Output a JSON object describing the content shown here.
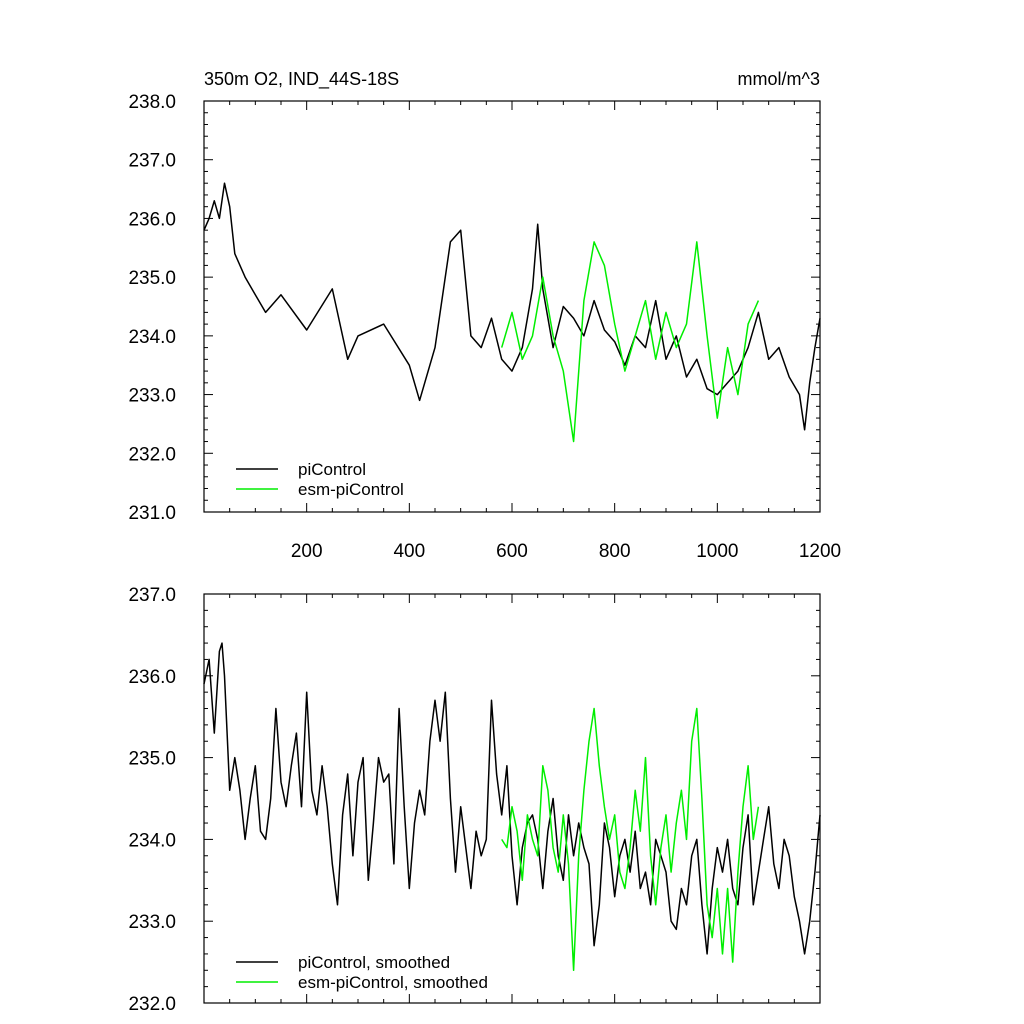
{
  "chart_data": [
    {
      "type": "line",
      "title_left": "350m O2, IND_44S-18S",
      "title_right": "mmol/m^3",
      "xlabel": "",
      "ylabel": "",
      "xlim": [
        0,
        1200
      ],
      "ylim": [
        231.0,
        238.0
      ],
      "xticks": [
        "200",
        "400",
        "600",
        "800",
        "1000",
        "1200"
      ],
      "xtick_values": [
        200,
        400,
        600,
        800,
        1000,
        1200
      ],
      "yticks": [
        "238.0",
        "237.0",
        "236.0",
        "235.0",
        "234.0",
        "233.0",
        "232.0",
        "231.0"
      ],
      "ytick_values": [
        238,
        237,
        236,
        235,
        234,
        233,
        232,
        231
      ],
      "grid": false,
      "legend_position": "bottom-left",
      "series": [
        {
          "name": "piControl",
          "color": "#000000",
          "x": [
            0,
            10,
            20,
            30,
            40,
            50,
            60,
            80,
            100,
            120,
            150,
            200,
            250,
            280,
            300,
            350,
            400,
            420,
            450,
            480,
            500,
            520,
            540,
            560,
            580,
            600,
            620,
            640,
            650,
            660,
            680,
            700,
            720,
            740,
            760,
            780,
            800,
            820,
            840,
            860,
            880,
            900,
            920,
            940,
            960,
            980,
            1000,
            1020,
            1040,
            1060,
            1080,
            1100,
            1120,
            1140,
            1160,
            1170,
            1180,
            1190,
            1200
          ],
          "y": [
            235.8,
            236.0,
            236.3,
            236.0,
            236.6,
            236.2,
            235.4,
            235.0,
            234.7,
            234.4,
            234.7,
            234.1,
            234.8,
            233.6,
            234.0,
            234.2,
            233.5,
            232.9,
            233.8,
            235.6,
            235.8,
            234.0,
            233.8,
            234.3,
            233.6,
            233.4,
            233.8,
            234.8,
            235.9,
            234.8,
            233.8,
            234.5,
            234.3,
            234.0,
            234.6,
            234.1,
            233.9,
            233.5,
            234.0,
            233.8,
            234.6,
            233.6,
            234.0,
            233.3,
            233.6,
            233.1,
            233.0,
            233.2,
            233.4,
            233.8,
            234.4,
            233.6,
            233.8,
            233.3,
            233.0,
            232.4,
            233.2,
            233.8,
            234.3
          ]
        },
        {
          "name": "esm-piControl",
          "color": "#00ee00",
          "x": [
            580,
            600,
            620,
            640,
            660,
            680,
            700,
            720,
            740,
            760,
            780,
            800,
            820,
            840,
            860,
            880,
            900,
            920,
            940,
            960,
            980,
            1000,
            1020,
            1040,
            1060,
            1080
          ],
          "y": [
            233.8,
            234.4,
            233.6,
            234.0,
            235.0,
            234.0,
            233.4,
            232.2,
            234.6,
            235.6,
            235.2,
            234.2,
            233.4,
            234.0,
            234.6,
            233.6,
            234.4,
            233.8,
            234.2,
            235.6,
            234.0,
            232.6,
            233.8,
            233.0,
            234.2,
            234.6
          ]
        }
      ]
    },
    {
      "type": "line",
      "title_left": "",
      "title_right": "",
      "xlabel": "",
      "ylabel": "",
      "xlim": [
        0,
        1200
      ],
      "ylim": [
        232.0,
        237.0
      ],
      "xticks": [],
      "xtick_values": [
        200,
        400,
        600,
        800,
        1000,
        1200
      ],
      "yticks": [
        "237.0",
        "236.0",
        "235.0",
        "234.0",
        "233.0",
        "232.0"
      ],
      "ytick_values": [
        237,
        236,
        235,
        234,
        233,
        232
      ],
      "grid": false,
      "legend_position": "bottom-left",
      "series": [
        {
          "name": "piControl, smoothed",
          "color": "#000000",
          "x": [
            0,
            10,
            20,
            30,
            35,
            40,
            50,
            60,
            70,
            80,
            90,
            100,
            110,
            120,
            130,
            140,
            150,
            160,
            170,
            180,
            190,
            200,
            210,
            220,
            230,
            240,
            250,
            260,
            270,
            280,
            290,
            300,
            310,
            320,
            330,
            340,
            350,
            360,
            370,
            380,
            390,
            400,
            410,
            420,
            430,
            440,
            450,
            460,
            470,
            480,
            490,
            500,
            510,
            520,
            530,
            540,
            550,
            560,
            570,
            580,
            590,
            600,
            610,
            620,
            630,
            640,
            650,
            660,
            670,
            680,
            690,
            700,
            710,
            720,
            730,
            740,
            750,
            760,
            770,
            780,
            790,
            800,
            810,
            820,
            830,
            840,
            850,
            860,
            870,
            880,
            890,
            900,
            910,
            920,
            930,
            940,
            950,
            960,
            970,
            980,
            990,
            1000,
            1010,
            1020,
            1030,
            1040,
            1050,
            1060,
            1070,
            1080,
            1090,
            1100,
            1110,
            1120,
            1130,
            1140,
            1150,
            1160,
            1170,
            1180,
            1190,
            1200
          ],
          "y": [
            235.9,
            236.2,
            235.3,
            236.3,
            236.4,
            236.0,
            234.6,
            235.0,
            234.6,
            234.0,
            234.5,
            234.9,
            234.1,
            234.0,
            234.5,
            235.6,
            234.7,
            234.4,
            234.9,
            235.3,
            234.4,
            235.8,
            234.6,
            234.3,
            234.9,
            234.4,
            233.7,
            233.2,
            234.3,
            234.8,
            233.8,
            234.7,
            235.0,
            233.5,
            234.2,
            235.0,
            234.7,
            234.8,
            233.7,
            235.6,
            234.4,
            233.4,
            234.2,
            234.6,
            234.3,
            235.2,
            235.7,
            235.2,
            235.8,
            234.5,
            233.6,
            234.4,
            233.9,
            233.4,
            234.1,
            233.8,
            234.0,
            235.7,
            234.8,
            234.3,
            234.9,
            233.8,
            233.2,
            233.9,
            234.2,
            234.3,
            234.0,
            233.4,
            234.1,
            234.5,
            233.8,
            233.5,
            234.3,
            233.8,
            234.2,
            233.9,
            233.7,
            232.7,
            233.2,
            234.2,
            233.9,
            233.3,
            233.8,
            234.0,
            233.6,
            234.1,
            233.4,
            233.6,
            233.2,
            234.0,
            233.8,
            233.6,
            233.0,
            232.9,
            233.4,
            233.2,
            233.8,
            234.0,
            233.2,
            232.6,
            233.4,
            233.9,
            233.6,
            234.0,
            233.4,
            233.2,
            233.9,
            234.3,
            233.2,
            233.6,
            234.0,
            234.4,
            233.7,
            233.4,
            234.0,
            233.8,
            233.3,
            233.0,
            232.6,
            233.0,
            233.6,
            234.3
          ]
        },
        {
          "name": "esm-piControl, smoothed",
          "color": "#00ee00",
          "x": [
            580,
            590,
            600,
            610,
            620,
            630,
            640,
            650,
            660,
            670,
            680,
            690,
            700,
            710,
            720,
            730,
            740,
            750,
            760,
            770,
            780,
            790,
            800,
            810,
            820,
            830,
            840,
            850,
            860,
            870,
            880,
            890,
            900,
            910,
            920,
            930,
            940,
            950,
            960,
            970,
            980,
            990,
            1000,
            1010,
            1020,
            1030,
            1040,
            1050,
            1060,
            1070,
            1080
          ],
          "y": [
            234.0,
            233.9,
            234.4,
            234.1,
            233.5,
            234.3,
            234.0,
            233.8,
            234.9,
            234.6,
            233.9,
            233.6,
            234.3,
            233.7,
            232.4,
            233.8,
            234.6,
            235.2,
            235.6,
            234.9,
            234.4,
            234.0,
            234.3,
            233.6,
            233.4,
            233.9,
            234.6,
            234.1,
            235.0,
            233.8,
            233.2,
            233.9,
            234.3,
            233.6,
            234.2,
            234.6,
            234.0,
            235.2,
            235.6,
            234.5,
            233.2,
            232.8,
            233.4,
            232.6,
            233.4,
            232.5,
            233.6,
            234.4,
            234.9,
            234.0,
            234.4
          ]
        }
      ]
    }
  ]
}
